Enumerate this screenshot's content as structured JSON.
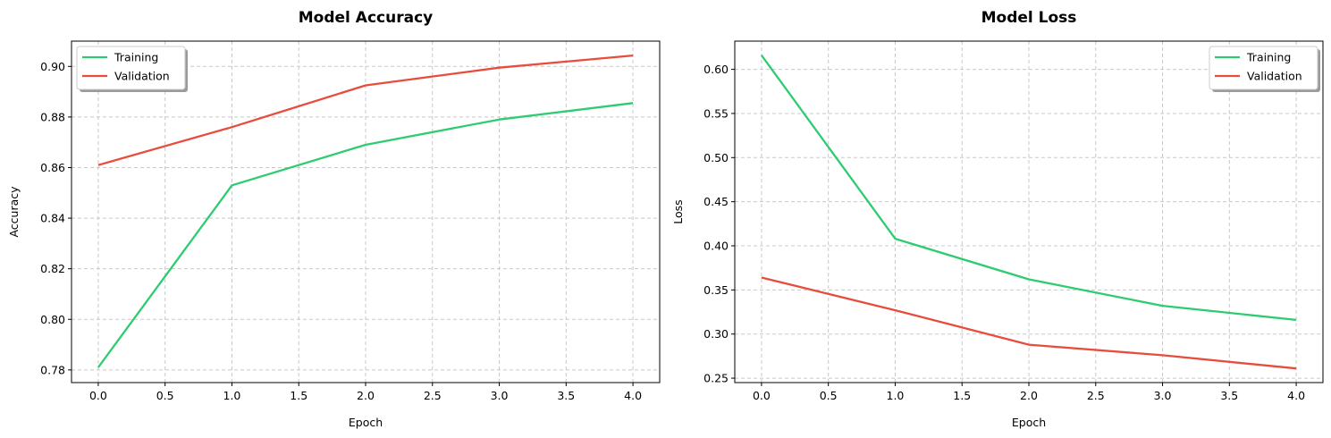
{
  "colors": {
    "training": "#2ecc71",
    "validation": "#e74c3c",
    "grid": "#c8c8c8"
  },
  "chart_data": [
    {
      "type": "line",
      "title": "Model Accuracy",
      "xlabel": "Epoch",
      "ylabel": "Accuracy",
      "xlim": [
        -0.2,
        4.2
      ],
      "ylim": [
        0.775,
        0.91
      ],
      "xticks": [
        "0.0",
        "0.5",
        "1.0",
        "1.5",
        "2.0",
        "2.5",
        "3.0",
        "3.5",
        "4.0"
      ],
      "yticks": [
        "0.78",
        "0.80",
        "0.82",
        "0.84",
        "0.86",
        "0.88",
        "0.90"
      ],
      "grid": true,
      "legend_position": "upper-left",
      "x": [
        0,
        1,
        2,
        3,
        4
      ],
      "series": [
        {
          "name": "Training",
          "color": "#2ecc71",
          "values": [
            0.781,
            0.853,
            0.869,
            0.879,
            0.8855
          ]
        },
        {
          "name": "Validation",
          "color": "#e74c3c",
          "values": [
            0.861,
            0.876,
            0.8925,
            0.8995,
            0.9043
          ]
        }
      ]
    },
    {
      "type": "line",
      "title": "Model Loss",
      "xlabel": "Epoch",
      "ylabel": "Loss",
      "xlim": [
        -0.2,
        4.2
      ],
      "ylim": [
        0.245,
        0.632
      ],
      "xticks": [
        "0.0",
        "0.5",
        "1.0",
        "1.5",
        "2.0",
        "2.5",
        "3.0",
        "3.5",
        "4.0"
      ],
      "yticks": [
        "0.25",
        "0.30",
        "0.35",
        "0.40",
        "0.45",
        "0.50",
        "0.55",
        "0.60"
      ],
      "grid": true,
      "legend_position": "upper-right",
      "x": [
        0,
        1,
        2,
        3,
        4
      ],
      "series": [
        {
          "name": "Training",
          "color": "#2ecc71",
          "values": [
            0.616,
            0.408,
            0.362,
            0.332,
            0.316
          ]
        },
        {
          "name": "Validation",
          "color": "#e74c3c",
          "values": [
            0.364,
            0.327,
            0.288,
            0.276,
            0.261
          ]
        }
      ]
    }
  ]
}
